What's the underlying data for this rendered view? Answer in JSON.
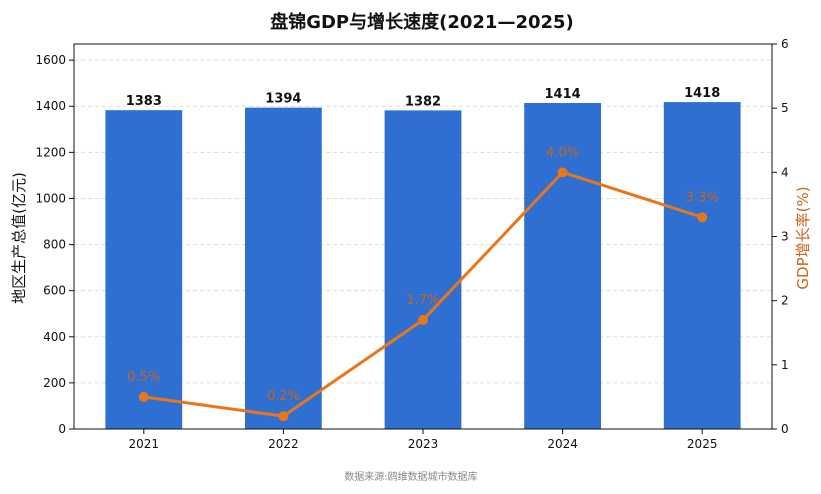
{
  "chart_data": {
    "type": "bar+line",
    "title": "盘锦GDP与增长速度(2021—2025)",
    "categories": [
      "2021",
      "2022",
      "2023",
      "2024",
      "2025"
    ],
    "series": [
      {
        "type": "bar",
        "axis": "left",
        "values": [
          1383,
          1394,
          1382,
          1414,
          1418
        ],
        "labels": [
          "1383",
          "1394",
          "1382",
          "1414",
          "1418"
        ],
        "color": "#2f6fd1"
      },
      {
        "type": "line",
        "axis": "right",
        "values": [
          0.5,
          0.2,
          1.7,
          4.0,
          3.3
        ],
        "labels": [
          "0.5%",
          "0.2%",
          "1.7%",
          "4.0%",
          "3.3%"
        ],
        "color": "#e8761a"
      }
    ],
    "ylabel_left": "地区生产总值(亿元)",
    "ylabel_right": "GDP增长率(%)",
    "ylim_left": [
      0,
      1670
    ],
    "yticks_left": [
      "0",
      "200",
      "400",
      "600",
      "800",
      "1000",
      "1200",
      "1400",
      "1600"
    ],
    "ylim_right": [
      0,
      6
    ],
    "yticks_right": [
      "0",
      "1",
      "2",
      "3",
      "4",
      "5",
      "6"
    ],
    "grid": "horizontal-dashed",
    "source": "数据来源:鸥维数据城市数据库"
  }
}
